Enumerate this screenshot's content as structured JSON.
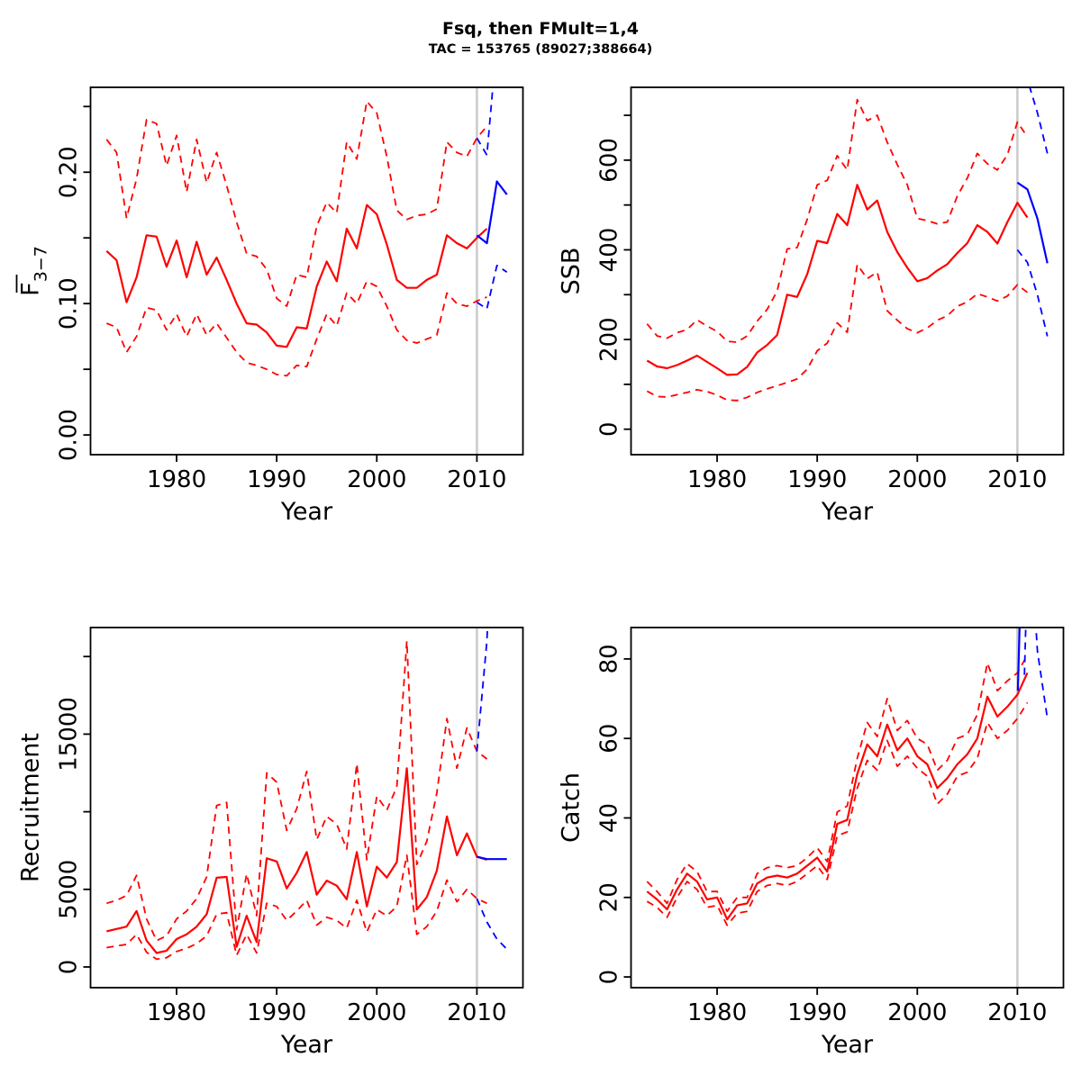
{
  "title": "Fsq, then FMult=1,4",
  "subtitle": "TAC = 153765 (89027;388664)",
  "colors": {
    "historical": "#FF0000",
    "forecast": "#0000FF",
    "now_line": "#CACACA",
    "axis": "#000000"
  },
  "now_year": 2010,
  "chart_data": [
    {
      "type": "line",
      "name": "fbar-panel",
      "xlabel": "Year",
      "ylabel": {
        "base": "F",
        "bar": true,
        "sub": "3−7"
      },
      "xlim": [
        1971.4,
        2014.6
      ],
      "ylim": [
        -0.015,
        0.2646
      ],
      "xticks": [
        [
          1980,
          "1980"
        ],
        [
          1990,
          "1990"
        ],
        [
          2000,
          "2000"
        ],
        [
          2010,
          "2010"
        ]
      ],
      "yticks": [
        [
          0,
          "0.00"
        ],
        [
          0.05,
          ""
        ],
        [
          0.1,
          "0.10"
        ],
        [
          0.15,
          ""
        ],
        [
          0.2,
          "0.20"
        ],
        [
          0.25,
          ""
        ]
      ],
      "vline": 2010,
      "grid": false,
      "legend": "none",
      "series": [
        {
          "name": "median-historical",
          "color": "historical",
          "dash": false,
          "width": 2.2,
          "x_start": 1973,
          "values": [
            0.14,
            0.133,
            0.101,
            0.12,
            0.152,
            0.151,
            0.128,
            0.148,
            0.12,
            0.147,
            0.122,
            0.135,
            0.118,
            0.1,
            0.085,
            0.084,
            0.078,
            0.068,
            0.067,
            0.082,
            0.081,
            0.113,
            0.132,
            0.117,
            0.157,
            0.142,
            0.175,
            0.168,
            0.145,
            0.118,
            0.112,
            0.112,
            0.118,
            0.122,
            0.152,
            0.146,
            0.142,
            0.15,
            0.157
          ]
        },
        {
          "name": "upper-ci-historical",
          "color": "historical",
          "dash": true,
          "width": 1.8,
          "x_start": 1973,
          "values": [
            0.225,
            0.215,
            0.165,
            0.195,
            0.24,
            0.237,
            0.205,
            0.228,
            0.185,
            0.225,
            0.192,
            0.215,
            0.19,
            0.162,
            0.138,
            0.136,
            0.126,
            0.104,
            0.098,
            0.122,
            0.12,
            0.159,
            0.177,
            0.169,
            0.223,
            0.21,
            0.254,
            0.245,
            0.212,
            0.171,
            0.164,
            0.167,
            0.168,
            0.172,
            0.223,
            0.215,
            0.212,
            0.226,
            0.235
          ]
        },
        {
          "name": "lower-ci-historical",
          "color": "historical",
          "dash": true,
          "width": 1.8,
          "x_start": 1973,
          "values": [
            0.085,
            0.082,
            0.063,
            0.075,
            0.097,
            0.095,
            0.08,
            0.092,
            0.075,
            0.092,
            0.076,
            0.085,
            0.074,
            0.063,
            0.055,
            0.053,
            0.05,
            0.046,
            0.045,
            0.053,
            0.052,
            0.073,
            0.092,
            0.083,
            0.108,
            0.1,
            0.117,
            0.113,
            0.098,
            0.08,
            0.072,
            0.07,
            0.073,
            0.076,
            0.108,
            0.1,
            0.098,
            0.102,
            0.105
          ]
        },
        {
          "name": "median-forecast",
          "color": "forecast",
          "dash": false,
          "width": 2.2,
          "x_start": 2010,
          "values": [
            0.152,
            0.146,
            0.193,
            0.183
          ]
        },
        {
          "name": "upper-ci-forecast",
          "color": "forecast",
          "dash": true,
          "width": 1.8,
          "x_start": 2010,
          "values": [
            0.226,
            0.213,
            0.3,
            0.31
          ]
        },
        {
          "name": "lower-ci-forecast",
          "color": "forecast",
          "dash": true,
          "width": 1.8,
          "x_start": 2010,
          "values": [
            0.101,
            0.096,
            0.129,
            0.124
          ]
        }
      ]
    },
    {
      "type": "line",
      "name": "ssb-panel",
      "xlabel": "Year",
      "ylabel": "SSB",
      "xlim": [
        1971.4,
        2014.6
      ],
      "ylim": [
        -56.8,
        762.4
      ],
      "xticks": [
        [
          1980,
          "1980"
        ],
        [
          1990,
          "1990"
        ],
        [
          2000,
          "2000"
        ],
        [
          2010,
          "2010"
        ]
      ],
      "yticks": [
        [
          0,
          "0"
        ],
        [
          100,
          ""
        ],
        [
          200,
          "200"
        ],
        [
          300,
          ""
        ],
        [
          400,
          "400"
        ],
        [
          500,
          ""
        ],
        [
          600,
          "600"
        ],
        [
          700,
          ""
        ]
      ],
      "vline": 2010,
      "grid": false,
      "legend": "none",
      "series": [
        {
          "name": "median-historical",
          "color": "historical",
          "dash": false,
          "width": 2.2,
          "x_start": 1973,
          "values": [
            153,
            140,
            136,
            143,
            153,
            164,
            150,
            136,
            121,
            122,
            139,
            171,
            188,
            210,
            300,
            295,
            346,
            420,
            415,
            480,
            455,
            545,
            490,
            510,
            440,
            395,
            360,
            330,
            337,
            354,
            368,
            393,
            415,
            455,
            440,
            414,
            462,
            505,
            472
          ]
        },
        {
          "name": "upper-ci-historical",
          "color": "historical",
          "dash": true,
          "width": 1.8,
          "x_start": 1973,
          "values": [
            235,
            208,
            203,
            215,
            222,
            244,
            230,
            218,
            196,
            194,
            208,
            241,
            267,
            308,
            402,
            405,
            468,
            545,
            555,
            610,
            578,
            735,
            688,
            700,
            640,
            590,
            545,
            470,
            465,
            458,
            462,
            520,
            560,
            615,
            592,
            578,
            612,
            685,
            652
          ]
        },
        {
          "name": "lower-ci-historical",
          "color": "historical",
          "dash": true,
          "width": 1.8,
          "x_start": 1973,
          "values": [
            85,
            73,
            72,
            77,
            82,
            88,
            84,
            76,
            65,
            64,
            71,
            82,
            90,
            97,
            104,
            112,
            134,
            175,
            192,
            237,
            216,
            367,
            336,
            350,
            264,
            243,
            224,
            215,
            226,
            243,
            253,
            274,
            284,
            302,
            295,
            286,
            297,
            322,
            305
          ]
        },
        {
          "name": "median-forecast",
          "color": "forecast",
          "dash": false,
          "width": 2.2,
          "x_start": 2010,
          "values": [
            550,
            535,
            470,
            370
          ]
        },
        {
          "name": "upper-ci-forecast",
          "color": "forecast",
          "dash": true,
          "width": 1.8,
          "x_start": 2010,
          "values": [
            815,
            780,
            706,
            615
          ]
        },
        {
          "name": "lower-ci-forecast",
          "color": "forecast",
          "dash": true,
          "width": 1.8,
          "x_start": 2010,
          "values": [
            400,
            372,
            300,
            207
          ]
        }
      ]
    },
    {
      "type": "line",
      "name": "recruitment-panel",
      "xlabel": "Year",
      "ylabel": "Recruitment",
      "xlim": [
        1971.4,
        2014.6
      ],
      "ylim": [
        -1334,
        21868
      ],
      "xticks": [
        [
          1980,
          "1980"
        ],
        [
          1990,
          "1990"
        ],
        [
          2000,
          "2000"
        ],
        [
          2010,
          "2010"
        ]
      ],
      "yticks": [
        [
          0,
          "0"
        ],
        [
          5000,
          "5000"
        ],
        [
          10000,
          ""
        ],
        [
          15000,
          "15000"
        ],
        [
          20000,
          ""
        ]
      ],
      "vline": 2010,
      "grid": false,
      "legend": "none",
      "series": [
        {
          "name": "median-historical",
          "color": "historical",
          "dash": false,
          "width": 2.2,
          "x_start": 1973,
          "values": [
            2300,
            2450,
            2600,
            3600,
            1700,
            900,
            1050,
            1800,
            2100,
            2600,
            3400,
            5750,
            5800,
            1300,
            3300,
            1600,
            7000,
            6800,
            5060,
            6060,
            7400,
            4660,
            5560,
            5240,
            4360,
            7400,
            3900,
            6460,
            5760,
            6760,
            12800,
            3700,
            4500,
            6200,
            9700,
            7200,
            8600,
            7100,
            6900
          ]
        },
        {
          "name": "upper-ci-historical",
          "color": "historical",
          "dash": true,
          "width": 1.8,
          "x_start": 1973,
          "values": [
            4100,
            4300,
            4600,
            5900,
            3100,
            1700,
            2000,
            3100,
            3600,
            4400,
            5800,
            10400,
            10600,
            2400,
            6000,
            3300,
            12500,
            11900,
            8800,
            10200,
            12600,
            8200,
            9700,
            9200,
            7600,
            13100,
            6900,
            11000,
            10100,
            11600,
            21000,
            6600,
            8100,
            11200,
            16000,
            12800,
            15400,
            13900,
            13400
          ]
        },
        {
          "name": "lower-ci-historical",
          "color": "historical",
          "dash": true,
          "width": 1.8,
          "x_start": 1973,
          "values": [
            1250,
            1350,
            1450,
            2100,
            950,
            500,
            600,
            1000,
            1200,
            1500,
            2000,
            3400,
            3500,
            750,
            2100,
            900,
            4100,
            3900,
            3000,
            3600,
            4300,
            2700,
            3200,
            3000,
            2500,
            4300,
            2250,
            3700,
            3300,
            3900,
            7200,
            2100,
            2600,
            3600,
            5600,
            4200,
            5000,
            4400,
            4100
          ]
        },
        {
          "name": "median-forecast",
          "color": "forecast",
          "dash": false,
          "width": 2.2,
          "x_start": 2010,
          "values": [
            7100,
            6950,
            6950,
            6950
          ]
        },
        {
          "name": "upper-ci-forecast",
          "color": "forecast",
          "dash": true,
          "width": 1.8,
          "x_start": 2010,
          "values": [
            13900,
            21000,
            36000,
            36000
          ]
        },
        {
          "name": "lower-ci-forecast",
          "color": "forecast",
          "dash": true,
          "width": 1.8,
          "x_start": 2010,
          "values": [
            4400,
            2900,
            1800,
            1150
          ]
        }
      ]
    },
    {
      "type": "line",
      "name": "catch-panel",
      "xlabel": "Year",
      "ylabel": "Catch",
      "xlim": [
        1971.4,
        2014.6
      ],
      "ylim": [
        -2.7,
        87.9
      ],
      "xticks": [
        [
          1980,
          "1980"
        ],
        [
          1990,
          "1990"
        ],
        [
          2000,
          "2000"
        ],
        [
          2010,
          "2010"
        ]
      ],
      "yticks": [
        [
          0,
          "0"
        ],
        [
          20,
          "20"
        ],
        [
          40,
          "40"
        ],
        [
          60,
          "60"
        ],
        [
          80,
          "80"
        ]
      ],
      "vline": 2010,
      "grid": false,
      "legend": "none",
      "series": [
        {
          "name": "median-historical",
          "color": "historical",
          "dash": false,
          "width": 2.2,
          "x_start": 1973,
          "values": [
            21.5,
            19.5,
            17.0,
            22.0,
            26.0,
            24.0,
            19.5,
            20.0,
            14.5,
            18.0,
            18.5,
            23.5,
            25.0,
            25.5,
            25.0,
            26.0,
            28.0,
            30.0,
            26.5,
            38.5,
            39.5,
            51.0,
            58.5,
            55.5,
            63.5,
            57.0,
            60.0,
            55.5,
            53.5,
            47.5,
            50.0,
            53.5,
            56.0,
            60.0,
            70.5,
            65.5,
            68.0,
            71.0,
            76.5
          ]
        },
        {
          "name": "upper-ci-historical",
          "color": "historical",
          "dash": true,
          "width": 1.8,
          "x_start": 1973,
          "values": [
            24.0,
            21.5,
            18.5,
            24.5,
            28.5,
            26.5,
            21.5,
            21.5,
            16.5,
            20.0,
            20.0,
            26.0,
            27.5,
            28.0,
            27.5,
            28.0,
            30.0,
            32.5,
            29.0,
            41.5,
            43.0,
            55.0,
            64.0,
            60.5,
            70.0,
            62.0,
            64.5,
            60.0,
            58.5,
            52.0,
            54.5,
            60.0,
            61.0,
            66.0,
            79.0,
            72.0,
            74.5,
            76.5,
            81.0
          ]
        },
        {
          "name": "lower-ci-historical",
          "color": "historical",
          "dash": true,
          "width": 1.8,
          "x_start": 1973,
          "values": [
            19.0,
            17.5,
            15.0,
            20.0,
            24.0,
            22.0,
            17.5,
            18.0,
            13.0,
            16.0,
            16.5,
            21.5,
            23.0,
            23.5,
            23.0,
            24.0,
            26.0,
            28.0,
            24.5,
            35.5,
            36.5,
            47.5,
            54.5,
            52.0,
            59.5,
            53.0,
            55.5,
            52.5,
            50.5,
            43.5,
            46.0,
            50.5,
            51.5,
            55.0,
            64.0,
            60.0,
            62.0,
            65.0,
            69.0
          ]
        },
        {
          "name": "median-forecast",
          "color": "forecast",
          "dash": false,
          "width": 2.2,
          "x": [
            2010.05,
            2011
          ],
          "values": [
            72,
            160
          ]
        },
        {
          "name": "upper-ci-forecast",
          "color": "forecast",
          "dash": true,
          "width": 1.8,
          "x": [
            2010.7,
            2011.3
          ],
          "values": [
            76,
            130
          ]
        },
        {
          "name": "lower-ci-forecast",
          "color": "forecast",
          "dash": true,
          "width": 1.8,
          "x": [
            2011.2,
            2012,
            2013
          ],
          "values": [
            115,
            82,
            65
          ]
        }
      ]
    }
  ]
}
